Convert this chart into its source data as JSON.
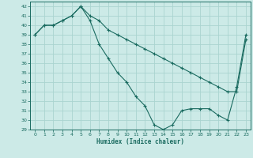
{
  "xlabel": "Humidex (Indice chaleur)",
  "bg_color": "#cceae7",
  "grid_color": "#aad4d0",
  "line_color": "#1a6b60",
  "ylim": [
    29,
    42.5
  ],
  "yticks": [
    29,
    30,
    31,
    32,
    33,
    34,
    35,
    36,
    37,
    38,
    39,
    40,
    41,
    42
  ],
  "xlim": [
    -0.5,
    23.5
  ],
  "xticks": [
    0,
    1,
    2,
    3,
    4,
    5,
    6,
    7,
    8,
    9,
    10,
    11,
    12,
    13,
    14,
    15,
    16,
    17,
    18,
    19,
    20,
    21,
    22,
    23
  ],
  "series1_x": [
    0,
    1,
    2,
    3,
    4,
    5,
    6,
    7,
    8,
    9,
    10,
    11,
    12,
    13,
    14,
    15,
    16,
    17,
    18,
    19,
    20,
    21,
    22,
    23
  ],
  "series1_y": [
    39,
    40,
    40,
    40.5,
    41,
    42,
    41,
    40.5,
    39.5,
    39,
    38.5,
    38,
    37.5,
    37,
    36.5,
    36,
    35.5,
    35,
    34.5,
    34,
    33.5,
    33,
    33,
    38.5
  ],
  "series2_x": [
    0,
    1,
    2,
    3,
    4,
    5,
    6,
    7,
    8,
    9,
    10,
    11,
    12,
    13,
    14,
    15,
    16,
    17,
    18,
    19,
    20,
    21,
    22,
    23
  ],
  "series2_y": [
    39,
    40,
    40,
    40.5,
    41,
    42,
    40.5,
    38,
    36.5,
    35,
    34,
    32.5,
    31.5,
    29.5,
    29,
    29.5,
    31,
    31.2,
    31.2,
    31.2,
    30.5,
    30,
    33.5,
    39
  ]
}
